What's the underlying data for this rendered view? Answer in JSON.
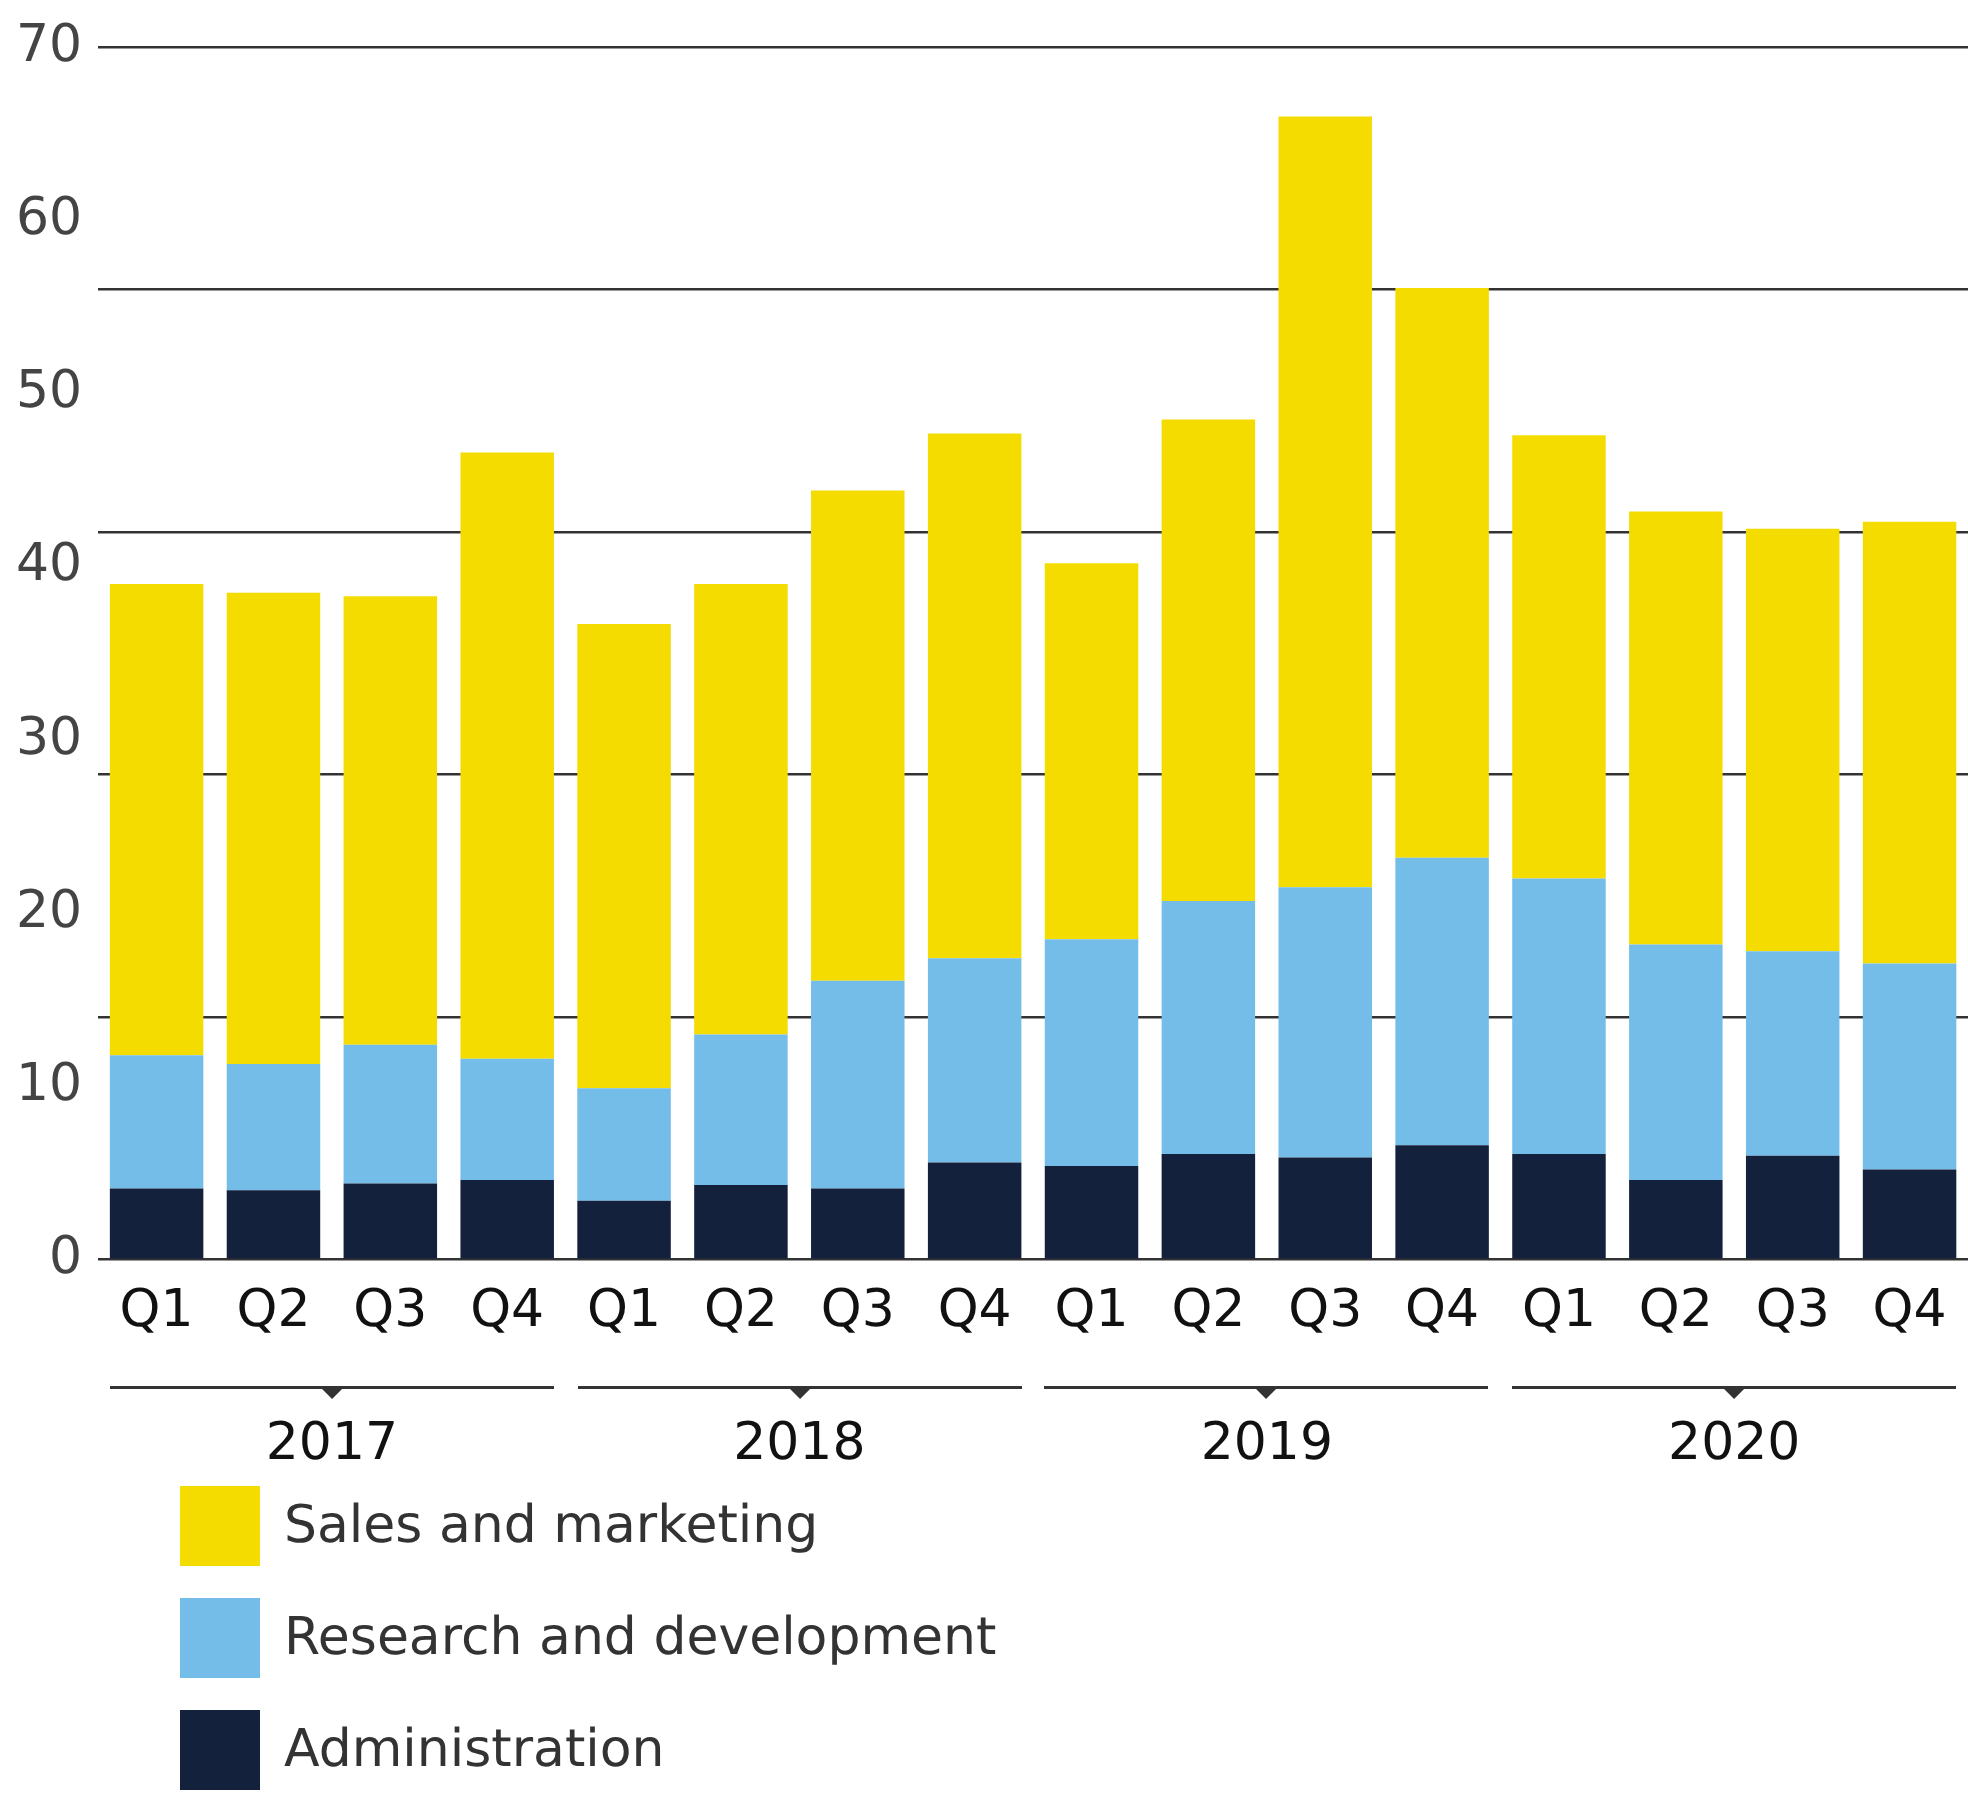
{
  "chart_data": {
    "type": "bar",
    "stacked": true,
    "categories": [
      "Q1",
      "Q2",
      "Q3",
      "Q4",
      "Q1",
      "Q2",
      "Q3",
      "Q4",
      "Q1",
      "Q2",
      "Q3",
      "Q4",
      "Q1",
      "Q2",
      "Q3",
      "Q4"
    ],
    "series": [
      {
        "name": "Administration",
        "color": "#14213d",
        "values": [
          4.1,
          4.0,
          4.4,
          4.6,
          3.4,
          4.3,
          4.1,
          5.6,
          5.4,
          6.1,
          5.9,
          6.6,
          6.1,
          4.6,
          6.0,
          5.2
        ]
      },
      {
        "name": "Research and development",
        "color": "#74bde8",
        "values": [
          7.7,
          7.3,
          8.0,
          7.0,
          6.5,
          8.7,
          12.0,
          11.8,
          13.1,
          14.6,
          15.6,
          16.6,
          15.9,
          13.6,
          11.8,
          11.9
        ]
      },
      {
        "name": "Sales and marketing",
        "color": "#f5dc00",
        "values": [
          27.2,
          27.2,
          25.9,
          35.0,
          26.8,
          26.0,
          28.3,
          30.3,
          21.7,
          27.8,
          44.5,
          32.9,
          25.6,
          25.0,
          24.4,
          25.5
        ]
      }
    ],
    "ylim": [
      0,
      70
    ],
    "yticks": [
      0,
      10,
      {
        "value": 14,
        "label": null
      },
      20,
      {
        "value": 28,
        "label": null
      },
      30,
      40,
      {
        "value": 42,
        "label": null
      },
      50,
      {
        "value": 56,
        "label": null
      },
      60,
      70
    ],
    "grid": "y",
    "legend": "bottom",
    "annotations": [
      "2017",
      "2018",
      "2019",
      "2020"
    ]
  }
}
